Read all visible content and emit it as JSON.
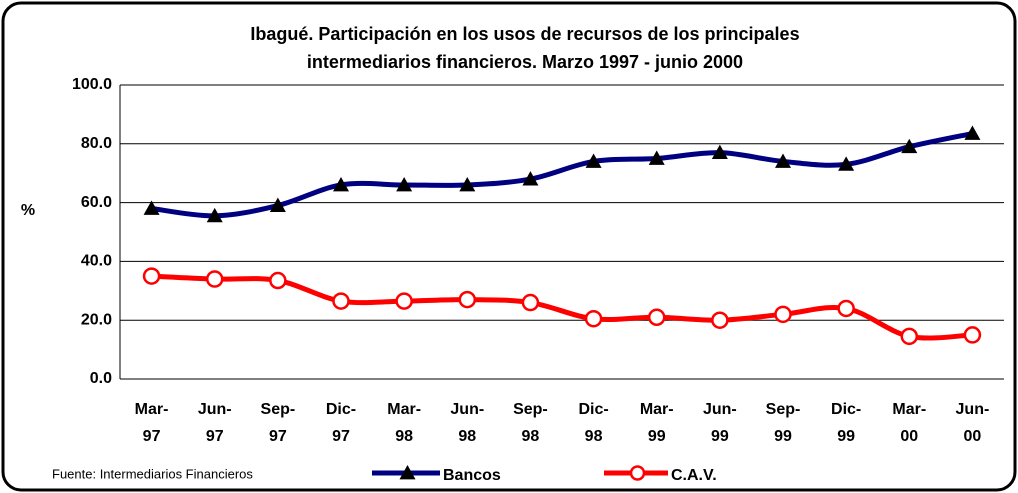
{
  "chart_data": {
    "type": "line",
    "title": [
      "Ibagué.  Participación en los usos de recursos de los principales",
      "intermediarios financieros. Marzo 1997 - junio 2000"
    ],
    "y_label": "%",
    "source": "Fuente: Intermediarios Financieros",
    "categories": [
      "Mar-97",
      "Jun-97",
      "Sep-97",
      "Dic-97",
      "Mar-98",
      "Jun-98",
      "Sep-98",
      "Dic-98",
      "Mar-99",
      "Jun-99",
      "Sep-99",
      "Dic-99",
      "Mar-00",
      "Jun-00"
    ],
    "series": [
      {
        "name": "Bancos",
        "color": "#000080",
        "values": [
          58,
          55.5,
          59,
          66,
          66,
          66,
          68,
          74,
          75,
          77,
          74,
          73,
          79,
          83.5
        ]
      },
      {
        "name": "C.A.V.",
        "color": "#ff0000",
        "values": [
          35,
          34,
          33.5,
          26.5,
          26.5,
          27,
          26,
          20.5,
          21,
          20,
          22,
          24,
          14.5,
          15
        ]
      }
    ],
    "ylim": [
      0,
      100
    ],
    "yticks": [
      {
        "value": 0,
        "label": "0.0"
      },
      {
        "value": 20,
        "label": "20.0"
      },
      {
        "value": 40,
        "label": "40.0"
      },
      {
        "value": 60,
        "label": "60.0"
      },
      {
        "value": 80,
        "label": "80.0"
      },
      {
        "value": 100,
        "label": "100.0"
      }
    ],
    "grid": true
  }
}
